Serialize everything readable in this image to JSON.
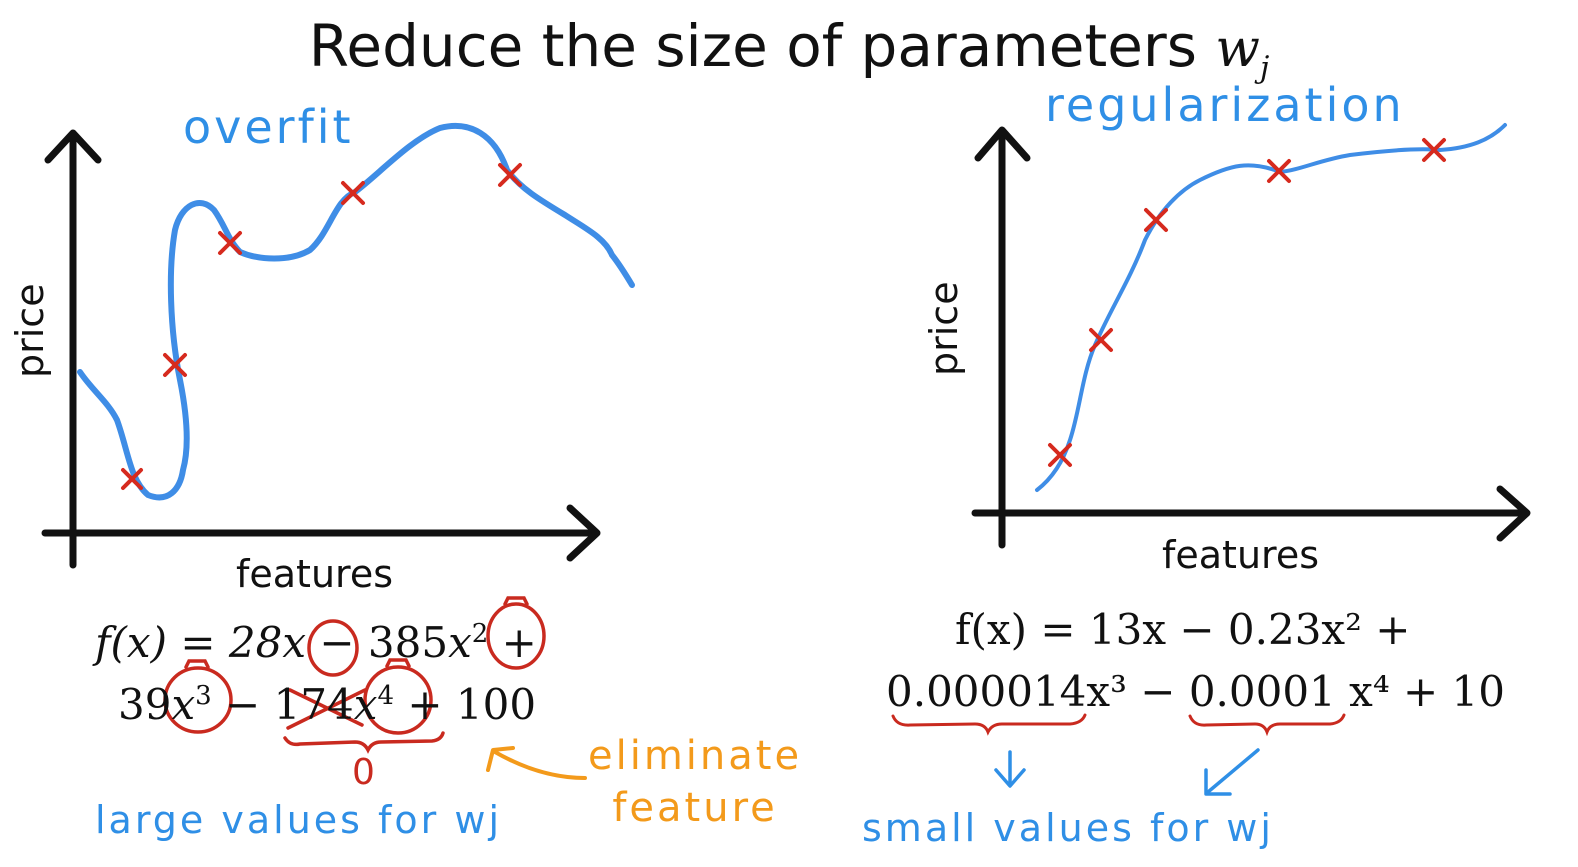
{
  "title": {
    "text": "Reduce the size of parameters",
    "param": "w",
    "param_sub": "j"
  },
  "left_plot": {
    "label": "overfit",
    "xlabel": "features",
    "ylabel": "price",
    "equation_line1": [
      "f(x) = 28",
      "x",
      " − 385",
      "x",
      "2",
      " +"
    ],
    "equation_line2": [
      "39",
      "x",
      "3",
      " − ",
      "174",
      "x",
      "4",
      " + 100"
    ],
    "zero_mark": "0",
    "annotation": "eliminate\nfeature",
    "caption": "large values for wj",
    "colors": {
      "curve": "#3f8de6",
      "marker": "#d62a1e",
      "circle": "#c92a1f",
      "annotation": "#f39a1b"
    }
  },
  "right_plot": {
    "label": "regularization",
    "xlabel": "features",
    "ylabel": "price",
    "equation_line1": "f(x) = 13x − 0.23x² +",
    "equation_line2": "0.000014x³ − 0.0001 x⁴ + 10",
    "caption": "small values for wj"
  }
}
